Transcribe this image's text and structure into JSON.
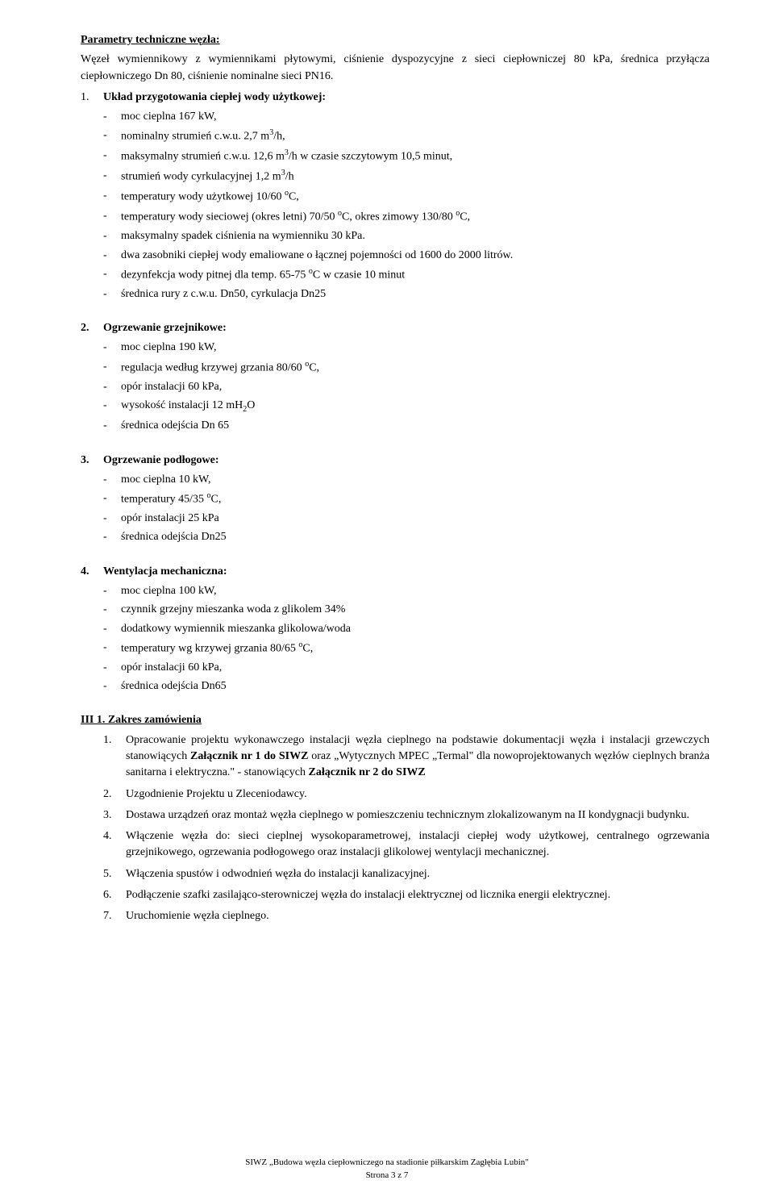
{
  "heading1": "Parametry techniczne węzła:",
  "intro": "Węzeł wymiennikowy z wymiennikami płytowymi, ciśnienie dyspozycyjne z sieci ciepłowniczej 80 kPa, średnica przyłącza ciepłowniczego Dn 80, ciśnienie nominalne sieci PN16.",
  "s1": {
    "num": "1.",
    "title": "Układ przygotowania ciepłej wody użytkowej:",
    "ba": "moc cieplna 167 kW,",
    "bb_pre": "nominalny strumień c.w.u. 2,7 m",
    "bb_sup": "3",
    "bb_post": "/h,",
    "bc_pre": "maksymalny strumień c.w.u. 12,6 m",
    "bc_sup": "3",
    "bc_post": "/h w czasie szczytowym 10,5 minut,",
    "bd_pre": "strumień wody cyrkulacyjnej 1,2 m",
    "bd_sup": "3",
    "bd_post": "/h",
    "be_pre": "temperatury wody użytkowej 10/60 ",
    "be_sup": "o",
    "be_post": "C,",
    "bf_pre": "temperatury wody sieciowej (okres letni) 70/50 ",
    "bf_sup": "o",
    "bf_mid": "C, okres zimowy 130/80 ",
    "bf_sup2": "o",
    "bf_post": "C,",
    "bg": "maksymalny spadek ciśnienia na wymienniku 30 kPa.",
    "bh": "dwa zasobniki ciepłej wody emaliowane o łącznej pojemności od 1600 do 2000 litrów.",
    "bi_pre": "dezynfekcja wody pitnej dla temp. 65-75 ",
    "bi_sup": "o",
    "bi_post": "C w czasie 10 minut",
    "bj": "średnica rury z c.w.u. Dn50, cyrkulacja Dn25"
  },
  "s2": {
    "num": "2.",
    "title": "Ogrzewanie grzejnikowe:",
    "ba": "moc cieplna 190 kW,",
    "bb_pre": "regulacja według krzywej grzania 80/60 ",
    "bb_sup": "o",
    "bb_post": "C,",
    "bc": "opór instalacji 60 kPa,",
    "bd_pre": "wysokość instalacji 12 mH",
    "bd_sub": "2",
    "bd_post": "O",
    "be": "średnica odejścia Dn 65"
  },
  "s3": {
    "num": "3.",
    "title": "Ogrzewanie podłogowe:",
    "ba": "moc cieplna 10 kW,",
    "bb_pre": "temperatury 45/35 ",
    "bb_sup": "o",
    "bb_post": "C,",
    "bc": "opór instalacji 25 kPa",
    "bd": "średnica odejścia Dn25"
  },
  "s4": {
    "num": "4.",
    "title": "Wentylacja mechaniczna:",
    "ba": "moc cieplna 100 kW,",
    "bb": "czynnik grzejny mieszanka woda z glikolem 34%",
    "bc": "dodatkowy wymiennik mieszanka glikolowa/woda",
    "bd_pre": "temperatury wg krzywej grzania 80/65 ",
    "bd_sup": "o",
    "bd_post": "C,",
    "be": "opór instalacji 60 kPa,",
    "bf": "średnica odejścia Dn65"
  },
  "zakres": {
    "heading": "III 1. Zakres zamówienia",
    "n1": "1.",
    "t1a": "Opracowanie projektu wykonawczego instalacji węzła cieplnego na podstawie dokumentacji węzła i instalacji grzewczych stanowiących ",
    "t1b": "Załącznik nr 1 do SIWZ",
    "t1c": " oraz „Wytycznych MPEC „Termal\" dla nowoprojektowanych węzłów cieplnych branża sanitarna i elektryczna.\" - stanowiących ",
    "t1d": "Załącznik nr 2 do SIWZ",
    "n2": "2.",
    "t2": "Uzgodnienie Projektu u Zleceniodawcy.",
    "n3": "3.",
    "t3": "Dostawa urządzeń oraz montaż węzła cieplnego w pomieszczeniu technicznym zlokalizowanym na II kondygnacji budynku.",
    "n4": "4.",
    "t4": "Włączenie węzła do: sieci cieplnej wysokoparametrowej, instalacji ciepłej wody użytkowej, centralnego ogrzewania grzejnikowego, ogrzewania podłogowego oraz instalacji glikolowej wentylacji mechanicznej.",
    "n5": "5.",
    "t5": "Włączenia spustów i odwodnień węzła do instalacji kanalizacyjnej.",
    "n6": "6.",
    "t6": "Podłączenie szafki zasilająco-sterowniczej węzła do instalacji elektrycznej od licznika energii elektrycznej.",
    "n7": "7.",
    "t7": "Uruchomienie węzła cieplnego."
  },
  "footer": {
    "line1": "SIWZ „Budowa węzła ciepłowniczego na stadionie piłkarskim Zagłębia Lubin\"",
    "line2": "Strona 3 z 7"
  }
}
